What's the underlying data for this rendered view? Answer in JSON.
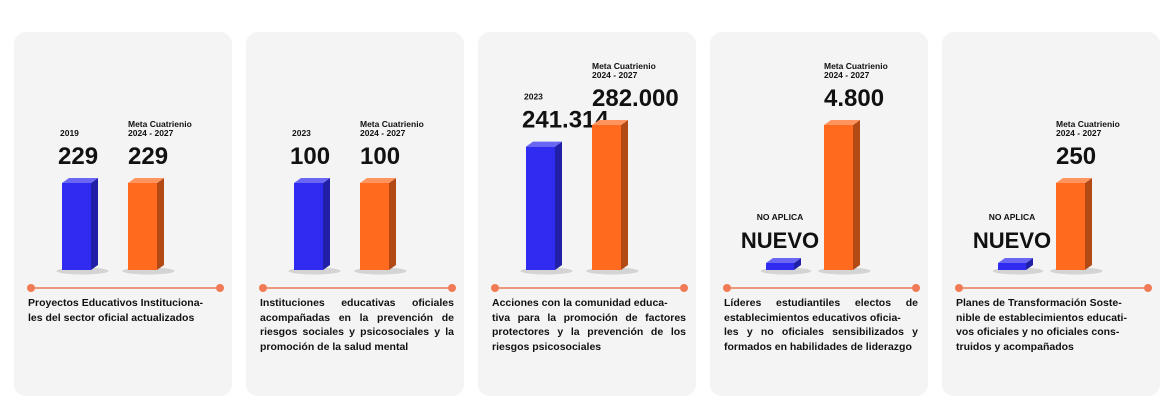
{
  "colors": {
    "baseline_bar": "#2f2bf0",
    "meta_bar": "#ff6a1f",
    "timeline": "#f07a55",
    "card_bg": "#f4f4f4"
  },
  "chart_data": [
    {
      "type": "bar",
      "categories": [
        "2019",
        "Meta Cuatrienio\n2024 - 2027"
      ],
      "series": [
        {
          "values": [
            229,
            229
          ]
        }
      ],
      "value_labels": [
        "229",
        "229"
      ],
      "baseline_text": "",
      "description": "Proyectos Educativos Instituciona-\nles del sector oficial actualizados"
    },
    {
      "type": "bar",
      "categories": [
        "2023",
        "Meta Cuatrienio\n2024 - 2027"
      ],
      "series": [
        {
          "values": [
            100,
            100
          ]
        }
      ],
      "value_labels": [
        "100",
        "100"
      ],
      "baseline_text": "",
      "description": "Instituciones educativas oficiales acompañadas en la prevención de riesgos sociales y psicosociales y la promoción de la salud mental"
    },
    {
      "type": "bar",
      "categories": [
        "2023",
        "Meta Cuatrienio\n2024 - 2027"
      ],
      "series": [
        {
          "values": [
            241314,
            282000
          ]
        }
      ],
      "value_labels": [
        "241.314",
        "282.000"
      ],
      "baseline_text": "",
      "description": "Acciones con la comunidad educa-\ntiva para la promoción de factores protectores y la prevención de los riesgos psicosociales"
    },
    {
      "type": "bar",
      "categories": [
        "NO APLICA",
        "Meta Cuatrienio\n2024 - 2027"
      ],
      "series": [
        {
          "values": [
            null,
            4800
          ]
        }
      ],
      "value_labels": [
        "NUEVO",
        "4.800"
      ],
      "baseline_text": "NO APLICA",
      "description": "Líderes estudiantiles electos de establecimientos educativos oficia-\nles y no oficiales sensibilizados y formados en habilidades de liderazgo"
    },
    {
      "type": "bar",
      "categories": [
        "NO APLICA",
        "Meta Cuatrienio\n2024 - 2027"
      ],
      "series": [
        {
          "values": [
            null,
            250
          ]
        }
      ],
      "value_labels": [
        "NUEVO",
        "250"
      ],
      "baseline_text": "NO APLICA",
      "description": "Planes de Transformación Soste-\nnible de establecimientos educati-\nvos oficiales y no oficiales cons-\ntruidos y acompañados"
    }
  ]
}
